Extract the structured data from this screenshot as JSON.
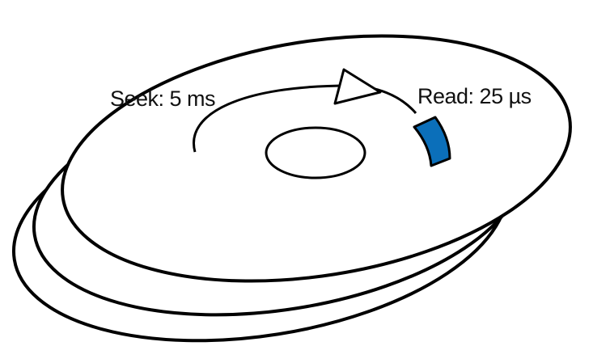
{
  "diagram": {
    "labels": {
      "seek": "Seek: 5 ms",
      "read": "Read: 25 µs"
    },
    "colors": {
      "platter_fill": "#ffffff",
      "outline": "#000000",
      "sector": "#0b6fba",
      "text": "#111111"
    },
    "icons": {
      "arrow": "triangle-arrow-head",
      "sector": "highlighted-sector"
    }
  }
}
